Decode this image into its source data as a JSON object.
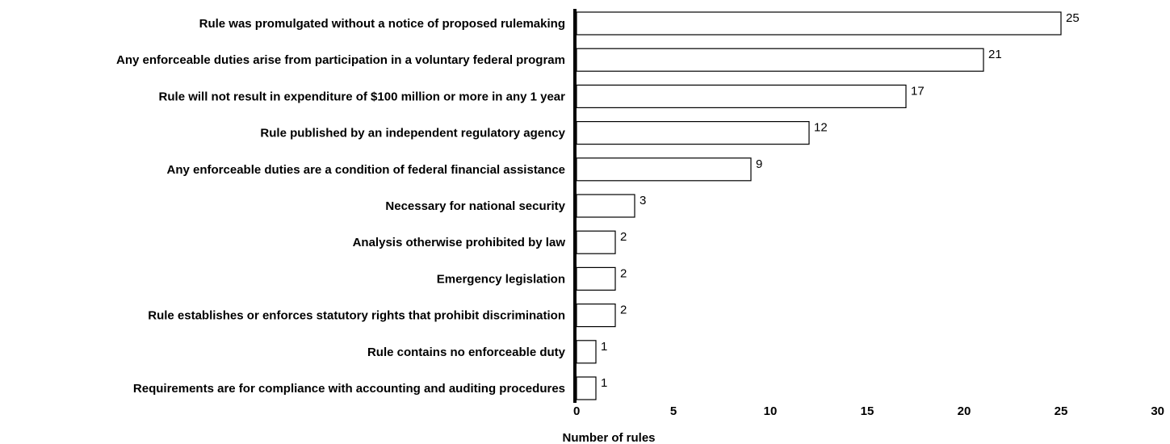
{
  "chart_data": {
    "type": "bar",
    "orientation": "horizontal",
    "categories": [
      "Rule was promulgated without a notice of proposed rulemaking",
      "Any enforceable duties arise from participation in a voluntary federal program",
      "Rule will not result in expenditure of $100 million or more in any 1 year",
      "Rule published by an independent regulatory agency",
      "Any enforceable duties are a condition of federal financial assistance",
      "Necessary for national security",
      "Analysis otherwise prohibited by law",
      "Emergency legislation",
      "Rule establishes or enforces statutory rights that prohibit discrimination",
      "Rule contains no enforceable duty",
      "Requirements are for compliance with accounting and auditing procedures"
    ],
    "values": [
      25,
      21,
      17,
      12,
      9,
      3,
      2,
      2,
      2,
      1,
      1
    ],
    "value_labels": [
      "25",
      "21",
      "17",
      "12",
      "9",
      "3",
      "2",
      "2",
      "2",
      "1",
      "1"
    ],
    "xlabel": "Number of rules",
    "xlim": [
      0,
      30
    ],
    "xticks": [
      0,
      5,
      10,
      15,
      20,
      25,
      30
    ],
    "xtick_labels": [
      "0",
      "5",
      "10",
      "15",
      "20",
      "25",
      "30"
    ],
    "grid": false,
    "bar_fill": "#ffffff",
    "bar_stroke": "#000000"
  }
}
